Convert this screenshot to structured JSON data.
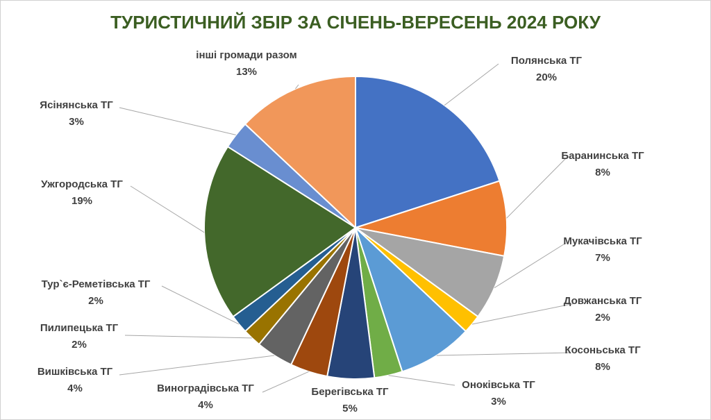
{
  "chart_data": {
    "type": "pie",
    "title": "ТУРИСТИЧНИЙ ЗБІР ЗА СІЧЕНЬ-ВЕРЕСЕНЬ 2024 РОКУ",
    "categories": [
      "Полянська ТГ",
      "Баранинська ТГ",
      "Мукачівська ТГ",
      "Довжанська ТГ",
      "Косоньська ТГ",
      "Оноківська ТГ",
      "Берегівська ТГ",
      "Виноградівська ТГ",
      "Вишківська ТГ",
      "Пилипецька ТГ",
      "Тур`є-Реметівська ТГ",
      "Ужгородська ТГ",
      "Ясінянська ТГ",
      "інші громади разом"
    ],
    "values": [
      20,
      8,
      7,
      2,
      8,
      3,
      5,
      4,
      4,
      2,
      2,
      19,
      3,
      13
    ],
    "value_labels": [
      "20%",
      "8%",
      "7%",
      "2%",
      "8%",
      "3%",
      "5%",
      "4%",
      "4%",
      "2%",
      "2%",
      "19%",
      "3%",
      "13%"
    ],
    "colors": [
      "#4472C4",
      "#ED7D31",
      "#A5A5A5",
      "#FFC000",
      "#5B9BD5",
      "#70AD47",
      "#264478",
      "#9E480E",
      "#636363",
      "#997300",
      "#255E91",
      "#43682B",
      "#698ED0",
      "#F1975A"
    ]
  }
}
